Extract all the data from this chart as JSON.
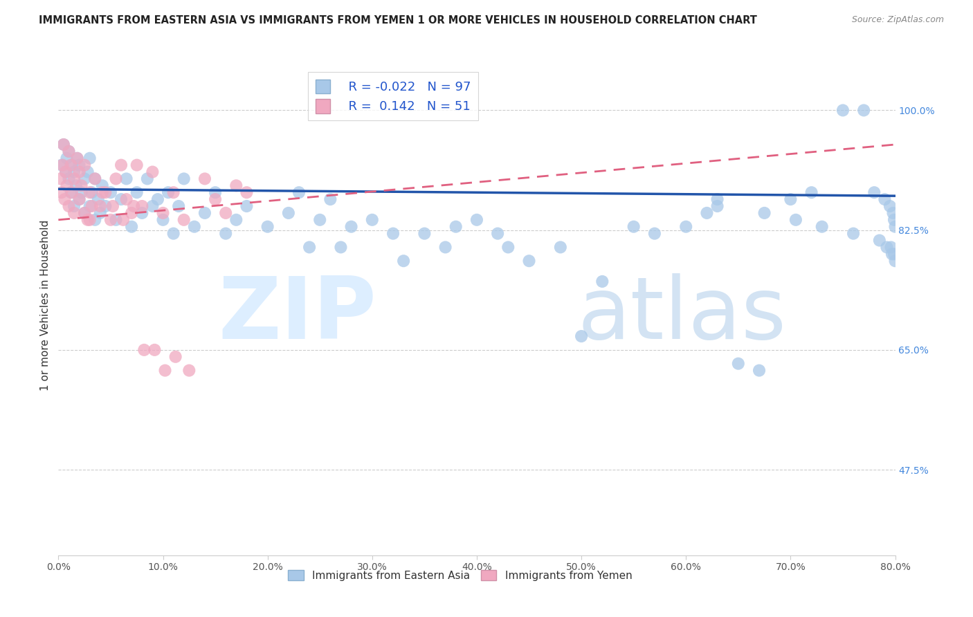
{
  "title": "IMMIGRANTS FROM EASTERN ASIA VS IMMIGRANTS FROM YEMEN 1 OR MORE VEHICLES IN HOUSEHOLD CORRELATION CHART",
  "source": "Source: ZipAtlas.com",
  "xlabel_ticks": [
    "0.0%",
    "10.0%",
    "20.0%",
    "30.0%",
    "40.0%",
    "50.0%",
    "60.0%",
    "70.0%",
    "80.0%"
  ],
  "xlabel_vals": [
    0,
    10,
    20,
    30,
    40,
    50,
    60,
    70,
    80
  ],
  "ylabel_ticks": [
    "100.0%",
    "82.5%",
    "65.0%",
    "47.5%"
  ],
  "ylabel_vals": [
    100.0,
    82.5,
    65.0,
    47.5
  ],
  "xlim": [
    0,
    80
  ],
  "ylim": [
    35,
    108
  ],
  "ylabel": "1 or more Vehicles in Household",
  "blue_R": -0.022,
  "blue_N": 97,
  "pink_R": 0.142,
  "pink_N": 51,
  "blue_color": "#a8c8e8",
  "pink_color": "#f0a8c0",
  "blue_line_color": "#2255aa",
  "pink_line_color": "#e06080",
  "blue_line_y0": 88.5,
  "blue_line_y1": 87.5,
  "pink_line_y0": 84.0,
  "pink_line_y1": 95.0,
  "blue_x": [
    0.3,
    0.5,
    0.7,
    0.8,
    1.0,
    1.0,
    1.2,
    1.3,
    1.5,
    1.5,
    1.7,
    1.8,
    2.0,
    2.0,
    2.2,
    2.5,
    2.5,
    2.8,
    3.0,
    3.0,
    3.2,
    3.5,
    3.5,
    3.8,
    4.0,
    4.2,
    4.5,
    5.0,
    5.5,
    6.0,
    6.5,
    7.0,
    7.5,
    8.0,
    8.5,
    9.0,
    9.5,
    10.0,
    10.5,
    11.0,
    11.5,
    12.0,
    13.0,
    14.0,
    15.0,
    16.0,
    17.0,
    18.0,
    20.0,
    22.0,
    23.0,
    24.0,
    25.0,
    26.0,
    27.0,
    28.0,
    30.0,
    32.0,
    33.0,
    35.0,
    37.0,
    38.0,
    40.0,
    42.0,
    43.0,
    45.0,
    48.0,
    50.0,
    52.0,
    55.0,
    57.0,
    60.0,
    62.0,
    63.0,
    65.0,
    67.0,
    70.0,
    72.0,
    75.0,
    77.0,
    78.0,
    79.0,
    79.5,
    79.8,
    79.9,
    80.0,
    63.0,
    67.5,
    70.5,
    73.0,
    76.0,
    78.5,
    79.2,
    79.6,
    79.7,
    79.9,
    80.0
  ],
  "blue_y": [
    92,
    95,
    91,
    93,
    90,
    94,
    88,
    92,
    86,
    91,
    89,
    93,
    87,
    92,
    88,
    90,
    85,
    91,
    86,
    93,
    88,
    84,
    90,
    87,
    85,
    89,
    86,
    88,
    84,
    87,
    90,
    83,
    88,
    85,
    90,
    86,
    87,
    84,
    88,
    82,
    86,
    90,
    83,
    85,
    88,
    82,
    84,
    86,
    83,
    85,
    88,
    80,
    84,
    87,
    80,
    83,
    84,
    82,
    78,
    82,
    80,
    83,
    84,
    82,
    80,
    78,
    80,
    67,
    75,
    83,
    82,
    83,
    85,
    87,
    63,
    62,
    87,
    88,
    100,
    100,
    88,
    87,
    86,
    85,
    84,
    83,
    86,
    85,
    84,
    83,
    82,
    81,
    80,
    80,
    79,
    79,
    78
  ],
  "pink_x": [
    0.2,
    0.3,
    0.4,
    0.5,
    0.6,
    0.7,
    0.8,
    1.0,
    1.0,
    1.2,
    1.3,
    1.5,
    1.5,
    1.8,
    2.0,
    2.0,
    2.2,
    2.5,
    2.5,
    3.0,
    3.0,
    3.5,
    4.0,
    4.5,
    5.0,
    5.5,
    6.0,
    6.5,
    7.0,
    7.5,
    8.0,
    9.0,
    10.0,
    11.0,
    12.0,
    14.0,
    15.0,
    16.0,
    17.0,
    18.0,
    2.8,
    3.2,
    4.2,
    5.2,
    6.2,
    7.2,
    8.2,
    9.2,
    10.2,
    11.2,
    12.5
  ],
  "pink_y": [
    90,
    88,
    92,
    95,
    87,
    91,
    89,
    94,
    86,
    92,
    88,
    90,
    85,
    93,
    87,
    91,
    89,
    85,
    92,
    88,
    84,
    90,
    86,
    88,
    84,
    90,
    92,
    87,
    85,
    92,
    86,
    91,
    85,
    88,
    84,
    90,
    87,
    85,
    89,
    88,
    84,
    86,
    88,
    86,
    84,
    86,
    65,
    65,
    62,
    64,
    62
  ]
}
